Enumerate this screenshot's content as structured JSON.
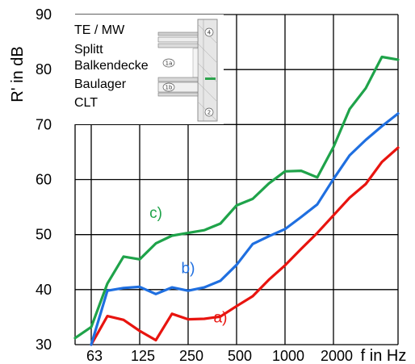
{
  "chart_data": {
    "type": "line",
    "xlabel": "f in Hz",
    "ylabel": "R' in dB",
    "ylim": [
      30,
      90
    ],
    "yticks": [
      30,
      40,
      50,
      60,
      70,
      80,
      90
    ],
    "x_tick_labels": [
      "63",
      "125",
      "250",
      "500",
      "1000",
      "2000"
    ],
    "x_tick_values": [
      63,
      125,
      250,
      500,
      1000,
      2000
    ],
    "x_scale": "log (third-octave bands)",
    "grid": true,
    "x": [
      50,
      63,
      80,
      100,
      125,
      160,
      200,
      250,
      315,
      400,
      500,
      630,
      800,
      1000,
      1250,
      1600,
      2000,
      2500,
      3150,
      4000,
      5000
    ],
    "series": [
      {
        "name": "a)",
        "color": "#e8140f",
        "values": [
          null,
          30,
          35.2,
          34.5,
          32.5,
          30.8,
          35.6,
          34.6,
          34.7,
          35.1,
          37.0,
          38.8,
          41.8,
          44.4,
          47.4,
          50.3,
          53.5,
          56.7,
          59.2,
          63.2,
          65.8
        ]
      },
      {
        "name": "b)",
        "color": "#1f6fe0",
        "values": [
          null,
          30,
          39.8,
          40.3,
          40.5,
          39.2,
          40.4,
          39.8,
          40.4,
          41.6,
          44.5,
          48.3,
          49.7,
          51.0,
          53.2,
          55.5,
          60.1,
          64.4,
          67.2,
          69.7,
          72.0
        ]
      },
      {
        "name": "c)",
        "color": "#1fa34a",
        "values": [
          31.2,
          33.2,
          41.1,
          46.0,
          45.5,
          48.4,
          49.8,
          50.3,
          50.8,
          52.0,
          55.3,
          56.5,
          59.3,
          61.5,
          61.6,
          60.4,
          65.9,
          72.8,
          76.6,
          82.3,
          81.8
        ]
      }
    ]
  },
  "legend": {
    "lines": [
      "TE / MW",
      "Splitt",
      "Balkendecke",
      "Baulager",
      "CLT"
    ]
  },
  "diagram": {
    "labels": [
      "4",
      "1a",
      "1b",
      "2"
    ]
  }
}
